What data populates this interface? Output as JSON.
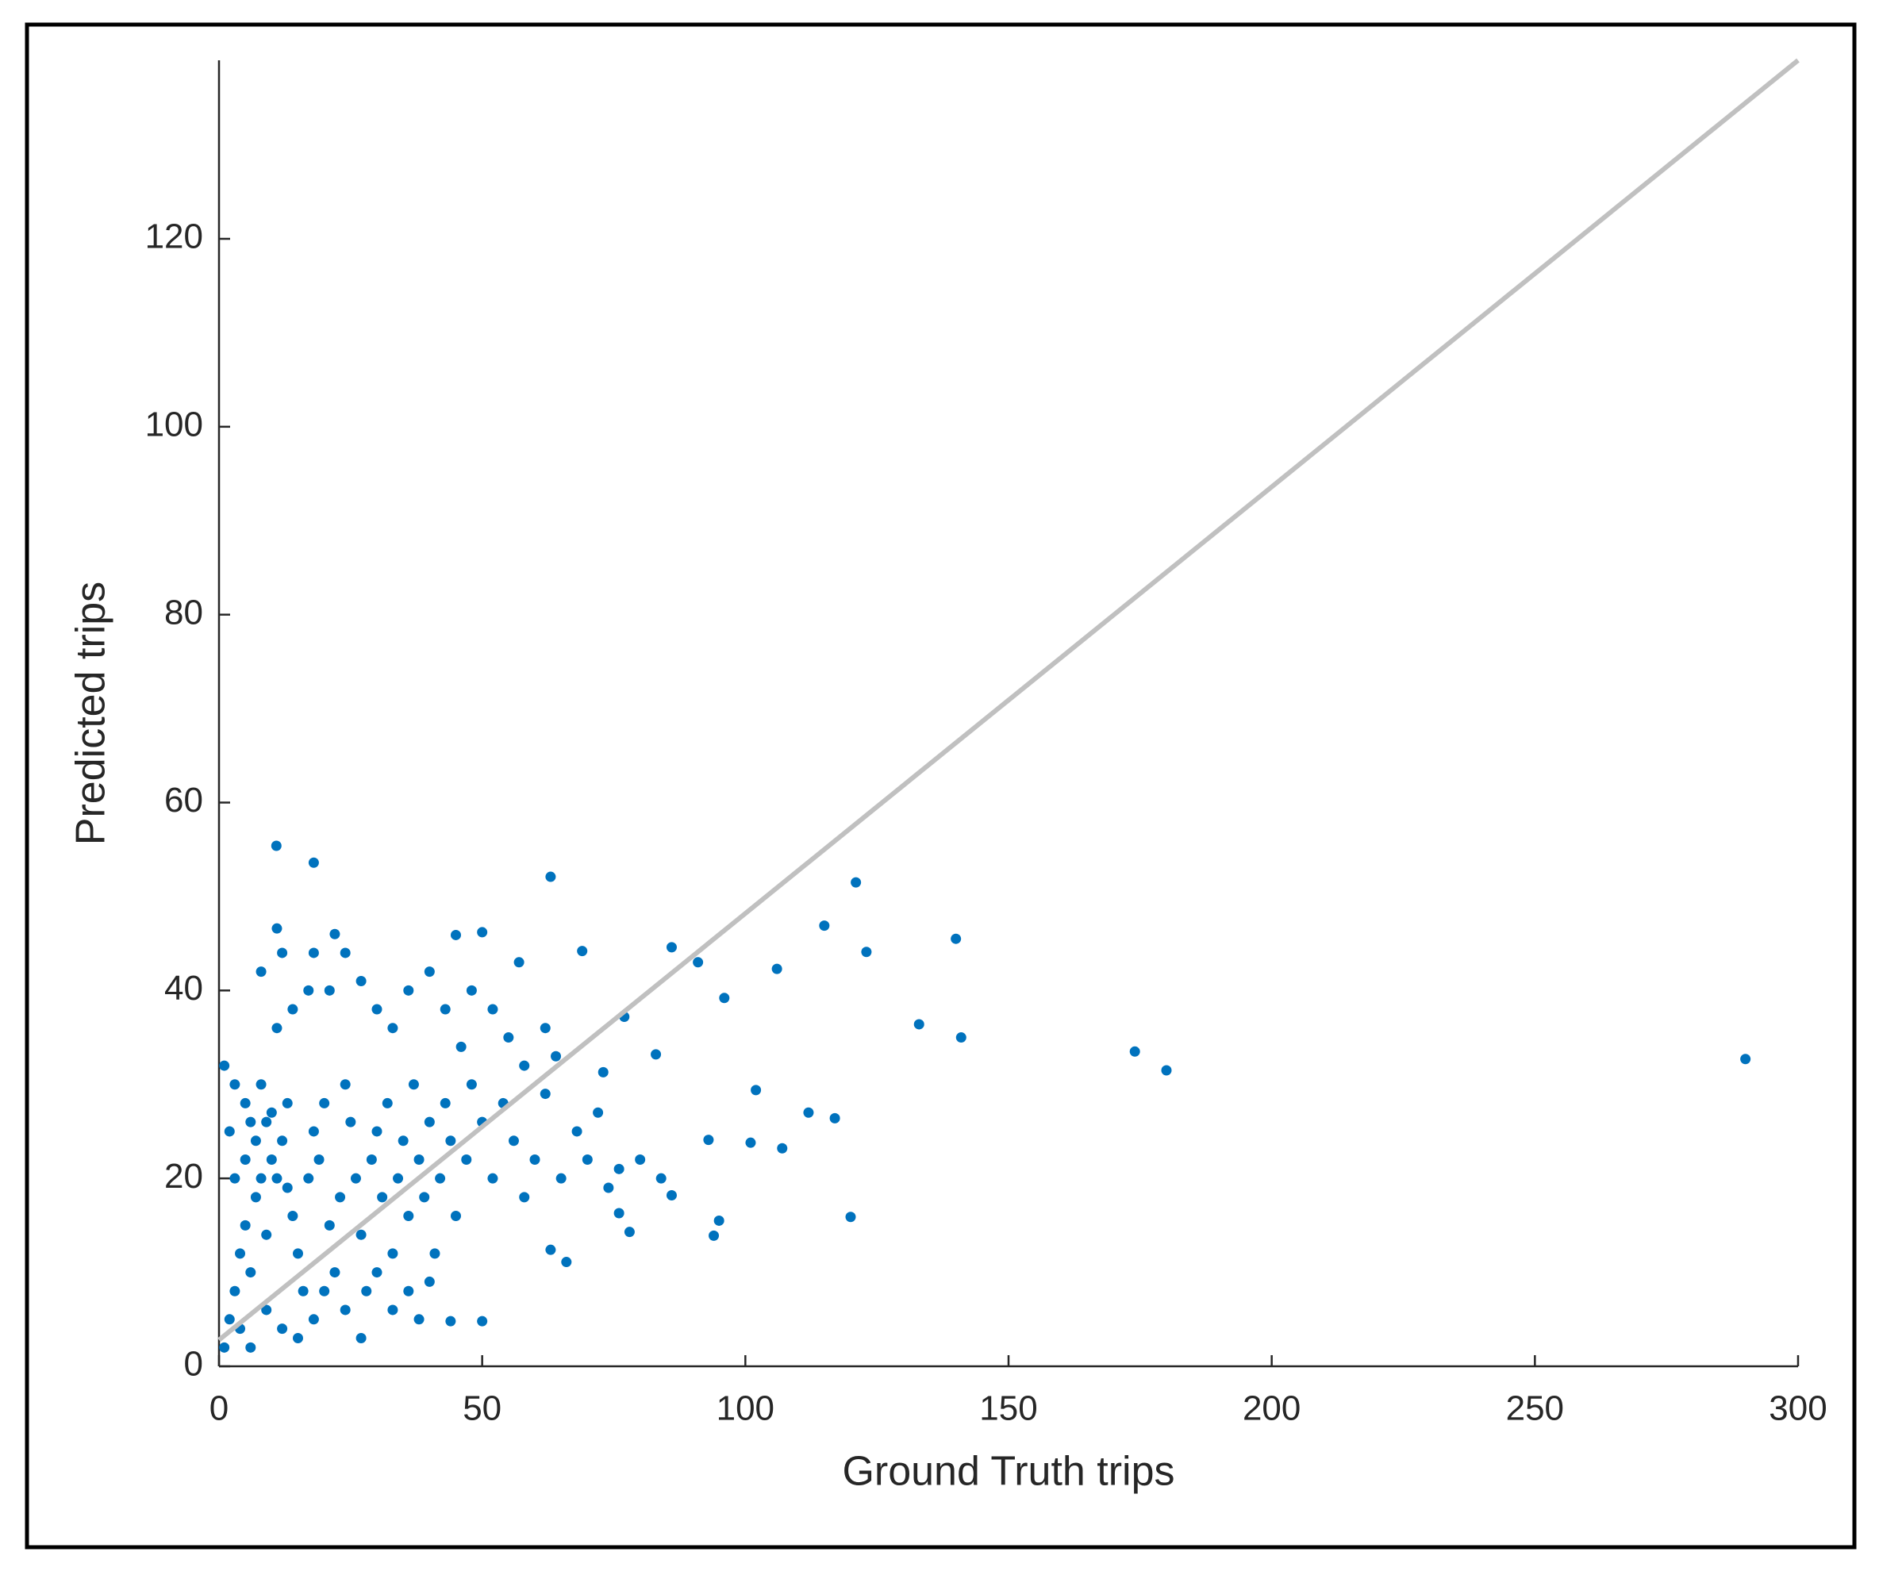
{
  "chart_data": {
    "type": "scatter",
    "x_label": "Ground Truth trips",
    "y_label": "Predicted trips",
    "xlim": [
      0,
      300
    ],
    "ylim": [
      0,
      139
    ],
    "xticks": [
      0,
      50,
      100,
      150,
      200,
      250,
      300
    ],
    "yticks": [
      0,
      20,
      40,
      60,
      80,
      100,
      120
    ],
    "series": [
      {
        "type": "scatter",
        "color": "#0072bd",
        "x": [
          1,
          2,
          3,
          4,
          5,
          6,
          7,
          8,
          9,
          10,
          2,
          3,
          1,
          5,
          6,
          8,
          10,
          12,
          13,
          14,
          15,
          16,
          17,
          18,
          19,
          20,
          21,
          22,
          23,
          24,
          25,
          26,
          27,
          28,
          29,
          30,
          31,
          32,
          33,
          34,
          35,
          36,
          37,
          38,
          39,
          40,
          41,
          42,
          43,
          44,
          45,
          46,
          47,
          48,
          50,
          52,
          54,
          56,
          58,
          60,
          11,
          14,
          17,
          21,
          24,
          27,
          30,
          33,
          36,
          40,
          8,
          12,
          18,
          22,
          43,
          48,
          52,
          55,
          58,
          62,
          4,
          6,
          9,
          12,
          15,
          18,
          20,
          24,
          27,
          30,
          33,
          36,
          38,
          40,
          3,
          5,
          7,
          9,
          11,
          13,
          62,
          64,
          65,
          68,
          70,
          72,
          74,
          76,
          80,
          84,
          10.9,
          18,
          63,
          121,
          115,
          140,
          106,
          123,
          133,
          141,
          174,
          180,
          290,
          120,
          117,
          112,
          102,
          101,
          107,
          96,
          91,
          86,
          95,
          94,
          93,
          11,
          45,
          50,
          57,
          69,
          78,
          66,
          50,
          44,
          76,
          86,
          83,
          77,
          73,
          63
        ],
        "y": [
          2,
          5,
          8,
          12,
          15,
          10,
          18,
          20,
          14,
          22,
          25,
          30,
          32,
          28,
          26,
          30,
          27,
          24,
          19,
          16,
          12,
          8,
          20,
          25,
          22,
          28,
          15,
          10,
          18,
          30,
          26,
          20,
          14,
          8,
          22,
          25,
          18,
          28,
          12,
          20,
          24,
          16,
          30,
          22,
          18,
          26,
          12,
          20,
          28,
          24,
          16,
          34,
          22,
          30,
          26,
          20,
          28,
          24,
          18,
          22,
          36,
          38,
          40,
          40,
          44,
          41,
          38,
          36,
          40,
          42,
          42,
          44,
          44,
          46,
          38,
          40,
          38,
          35,
          32,
          36,
          4,
          2,
          6,
          4,
          3,
          5,
          8,
          6,
          3,
          10,
          6,
          8,
          5,
          9,
          20,
          22,
          24,
          26,
          20,
          28,
          29,
          33,
          20,
          25,
          22,
          27,
          19,
          21,
          22,
          20,
          55.4,
          53.6,
          52.1,
          51.5,
          46.9,
          45.5,
          42.3,
          44.1,
          36.4,
          35,
          33.5,
          31.5,
          32.7,
          15.9,
          26.4,
          27,
          29.4,
          23.8,
          23.2,
          39.2,
          43,
          44.6,
          15.5,
          13.9,
          24.1,
          46.6,
          45.9,
          46.2,
          43,
          44.2,
          14.3,
          11.1,
          4.8,
          4.8,
          16.3,
          18.2,
          33.2,
          37.2,
          31.3,
          12.4
        ]
      },
      {
        "type": "line",
        "color": "#c0c0c0",
        "x": [
          0,
          300
        ],
        "y": [
          2.8,
          139
        ]
      }
    ]
  }
}
